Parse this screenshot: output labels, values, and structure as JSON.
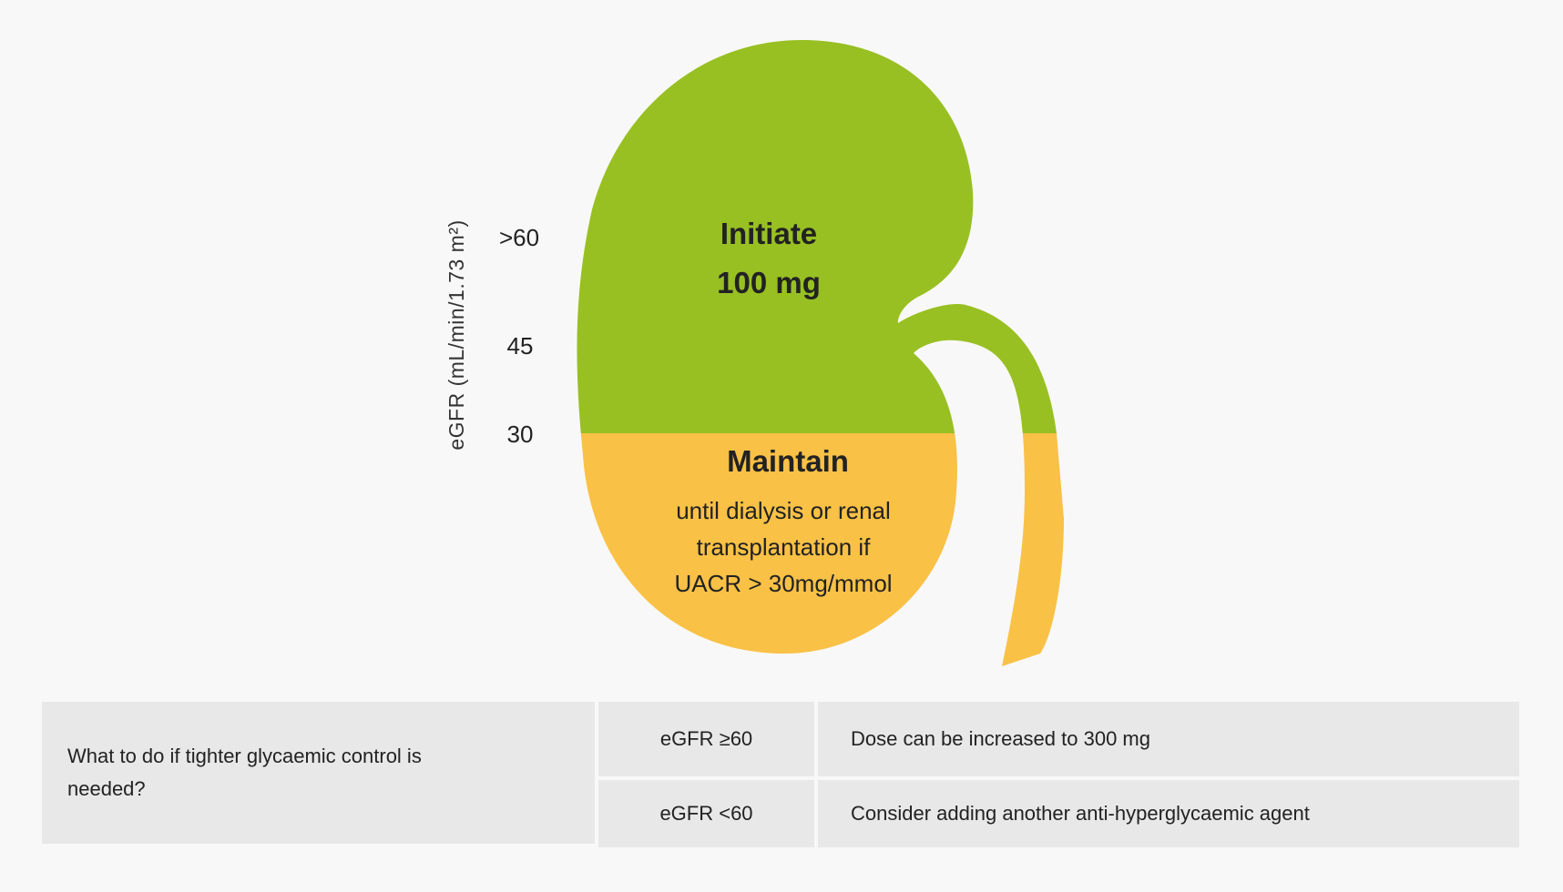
{
  "diagram": {
    "axis_title": "eGFR (mL/min/1.73 m²)",
    "ticks": [
      ">60",
      "45",
      "30"
    ],
    "upper_zone": {
      "label_line1": "Initiate",
      "label_line2": "100 mg",
      "color": "#98c022"
    },
    "lower_zone": {
      "heading": "Maintain",
      "lines": [
        "until dialysis or renal",
        "transplantation if",
        "UACR > 30mg/mmol"
      ],
      "color": "#f9c146"
    }
  },
  "table": {
    "question": "What to do if tighter glycaemic control is needed?",
    "rows": [
      {
        "condition": "eGFR  ≥60",
        "action": "Dose can be increased to 300 mg"
      },
      {
        "condition": "eGFR <60",
        "action": "Consider adding another anti-hyperglycaemic agent"
      }
    ]
  },
  "colors": {
    "background": "#f8f8f8",
    "table_cell": "#e8e8e8"
  }
}
